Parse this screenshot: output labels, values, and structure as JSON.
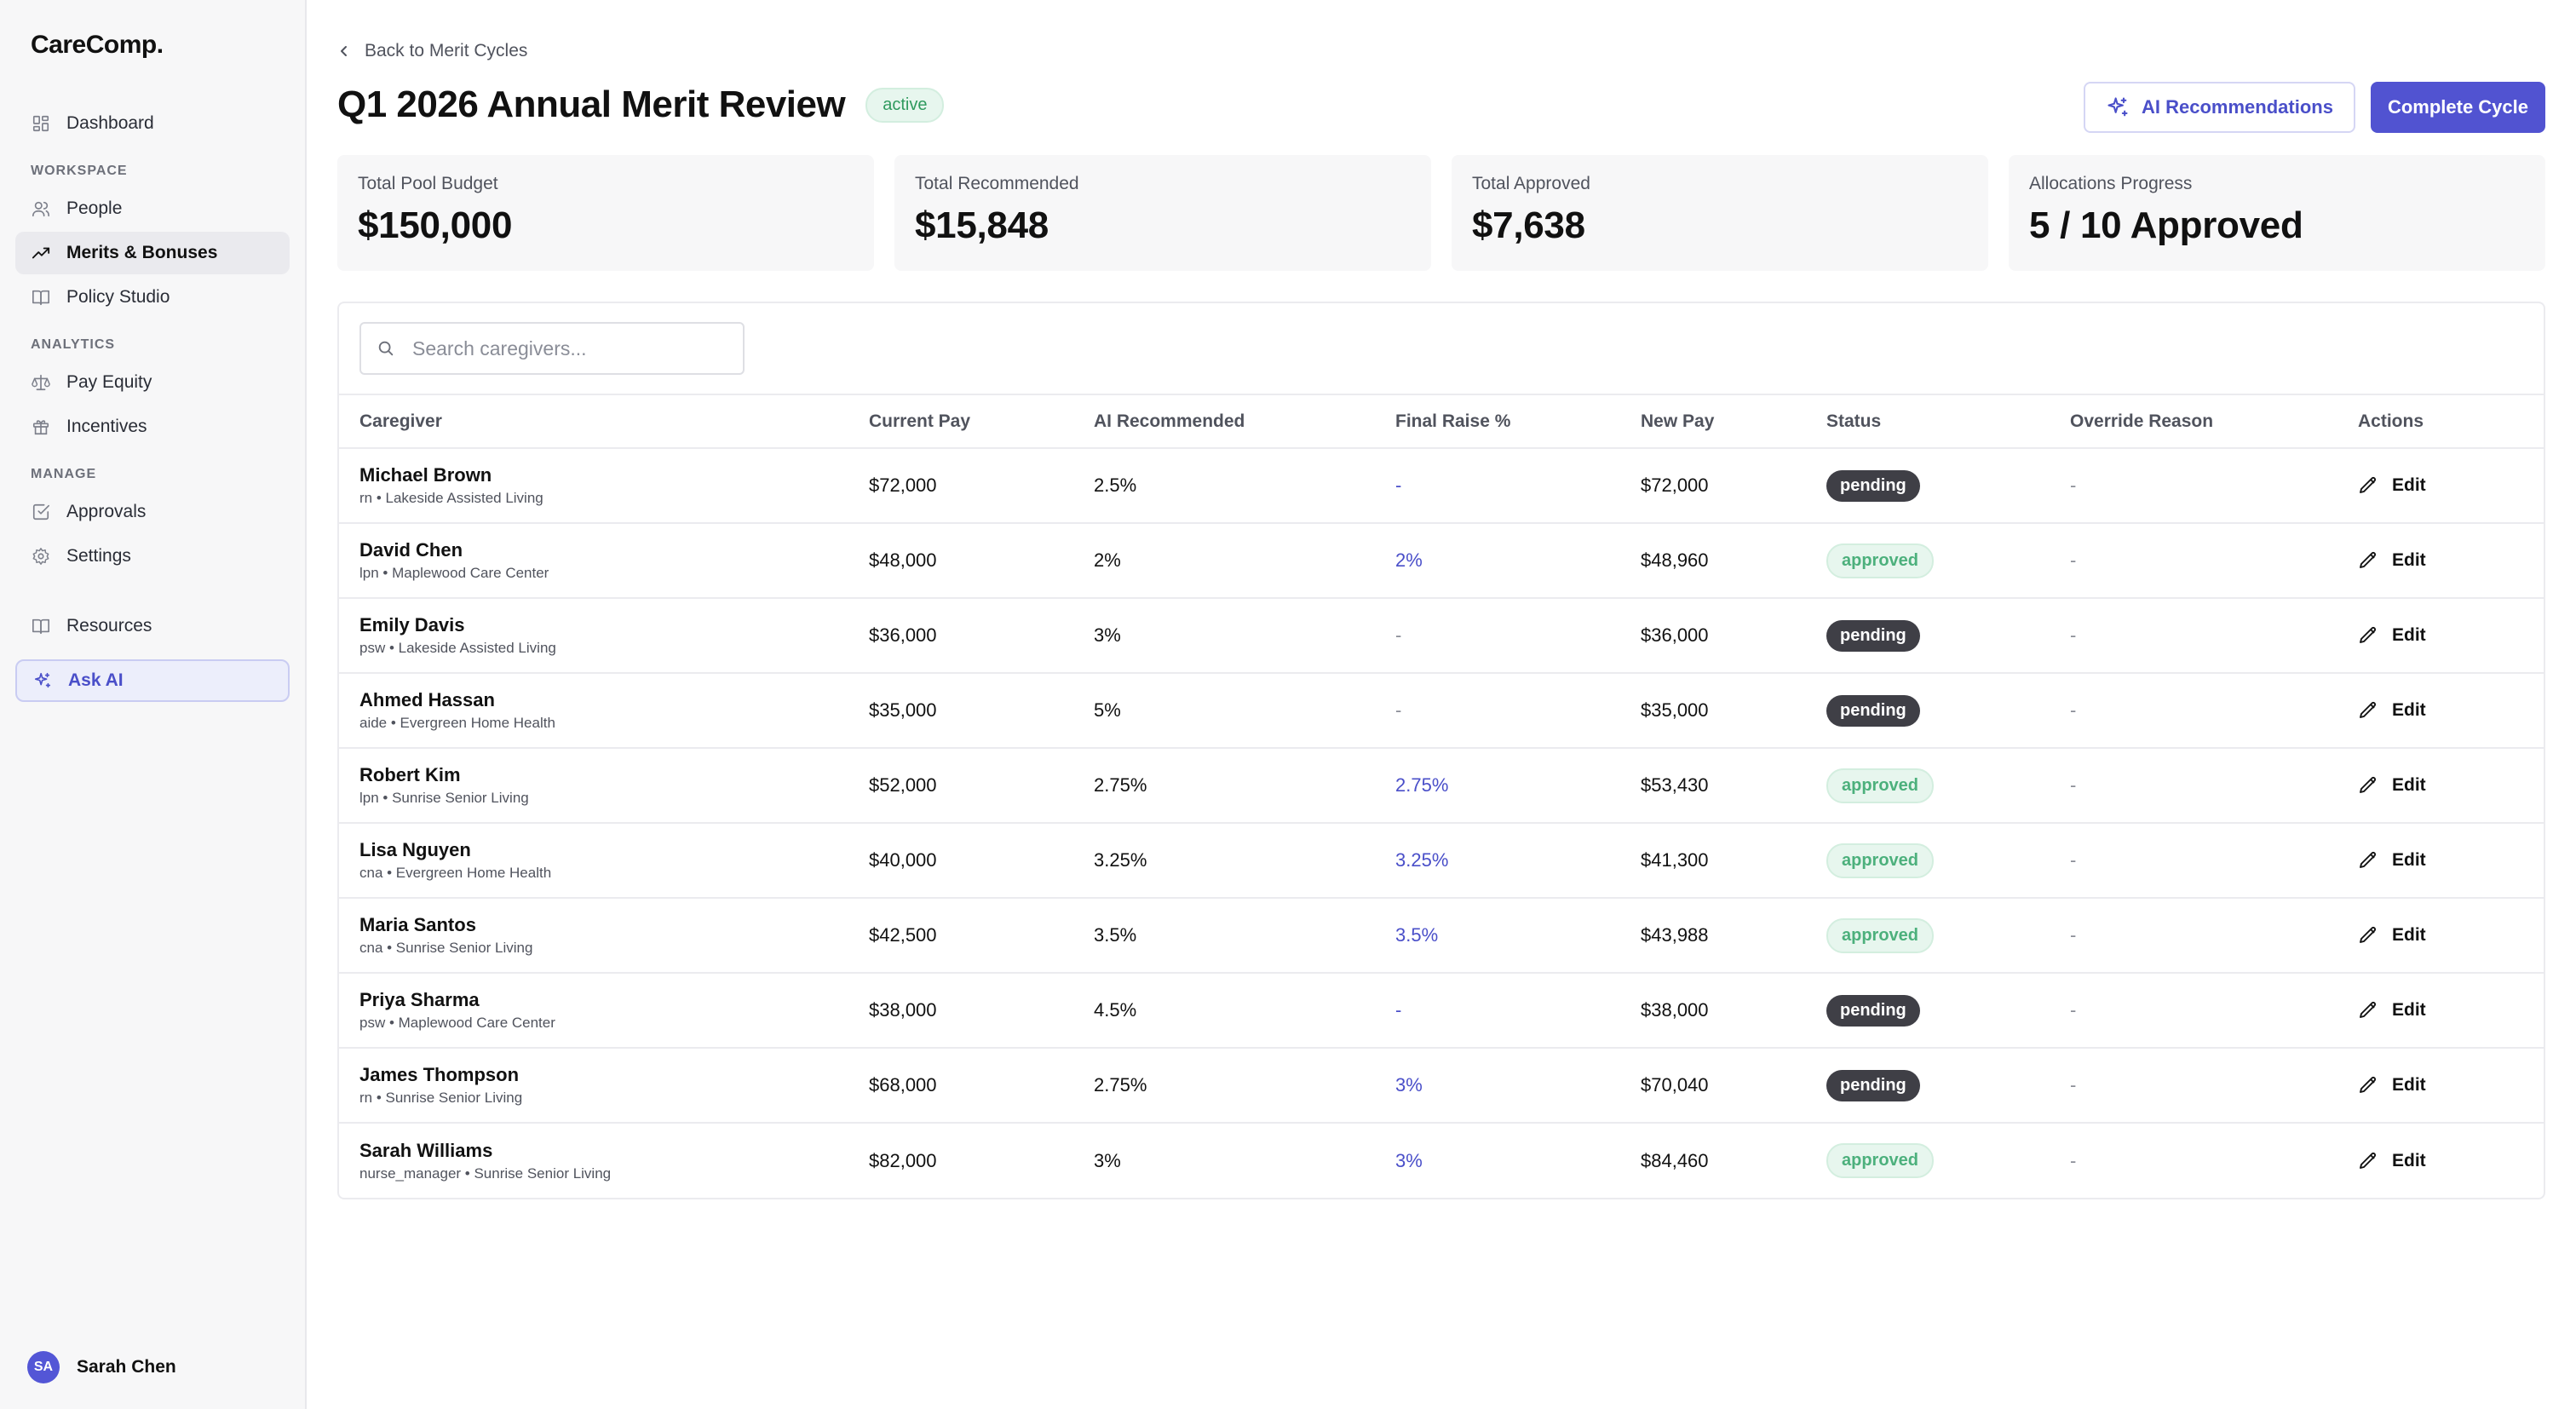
{
  "app": {
    "logo": "CareComp."
  },
  "sidebar": {
    "top_items": [
      {
        "label": "Dashboard",
        "icon": "dashboard-icon"
      }
    ],
    "sections": [
      {
        "title": "WORKSPACE",
        "items": [
          {
            "label": "People",
            "icon": "people-icon"
          },
          {
            "label": "Merits & Bonuses",
            "icon": "trending-up-icon",
            "active": true
          },
          {
            "label": "Policy Studio",
            "icon": "book-icon"
          }
        ]
      },
      {
        "title": "ANALYTICS",
        "items": [
          {
            "label": "Pay Equity",
            "icon": "scale-icon"
          },
          {
            "label": "Incentives",
            "icon": "gift-icon"
          }
        ]
      },
      {
        "title": "MANAGE",
        "items": [
          {
            "label": "Approvals",
            "icon": "check-square-icon"
          },
          {
            "label": "Settings",
            "icon": "gear-icon"
          }
        ]
      }
    ],
    "bottom_items": [
      {
        "label": "Resources",
        "icon": "book-open-icon"
      },
      {
        "label": "Ask AI",
        "icon": "sparkles-icon"
      }
    ],
    "user": {
      "initials": "SA",
      "name": "Sarah Chen"
    }
  },
  "header": {
    "back_label": "Back to Merit Cycles",
    "title": "Q1 2026 Annual Merit Review",
    "status": "active",
    "ai_button": "AI Recommendations",
    "complete_button": "Complete Cycle"
  },
  "stats": [
    {
      "label": "Total Pool Budget",
      "value": "$150,000"
    },
    {
      "label": "Total Recommended",
      "value": "$15,848"
    },
    {
      "label": "Total Approved",
      "value": "$7,638"
    },
    {
      "label": "Allocations Progress",
      "value": "5 / 10 Approved"
    }
  ],
  "search": {
    "placeholder": "Search caregivers..."
  },
  "table": {
    "columns": [
      "Caregiver",
      "Current Pay",
      "AI Recommended",
      "Final Raise %",
      "New Pay",
      "Status",
      "Override Reason",
      "Actions"
    ],
    "edit_label": "Edit",
    "rows": [
      {
        "name": "Michael Brown",
        "sub": "rn • Lakeside Assisted Living",
        "current": "$72,000",
        "ai": "2.5%",
        "final": "-",
        "new_pay": "$72,000",
        "status": "pending",
        "override": "-"
      },
      {
        "name": "David Chen",
        "sub": "lpn • Maplewood Care Center",
        "current": "$48,000",
        "ai": "2%",
        "final": "2%",
        "new_pay": "$48,960",
        "status": "approved",
        "override": "-"
      },
      {
        "name": "Emily Davis",
        "sub": "psw • Lakeside Assisted Living",
        "current": "$36,000",
        "ai": "3%",
        "final": "-",
        "new_pay": "$36,000",
        "status": "pending",
        "override": "-"
      },
      {
        "name": "Ahmed Hassan",
        "sub": "aide • Evergreen Home Health",
        "current": "$35,000",
        "ai": "5%",
        "final": "-",
        "new_pay": "$35,000",
        "status": "pending",
        "override": "-"
      },
      {
        "name": "Robert Kim",
        "sub": "lpn • Sunrise Senior Living",
        "current": "$52,000",
        "ai": "2.75%",
        "final": "2.75%",
        "new_pay": "$53,430",
        "status": "approved",
        "override": "-"
      },
      {
        "name": "Lisa Nguyen",
        "sub": "cna • Evergreen Home Health",
        "current": "$40,000",
        "ai": "3.25%",
        "final": "3.25%",
        "new_pay": "$41,300",
        "status": "approved",
        "override": "-"
      },
      {
        "name": "Maria Santos",
        "sub": "cna • Sunrise Senior Living",
        "current": "$42,500",
        "ai": "3.5%",
        "final": "3.5%",
        "new_pay": "$43,988",
        "status": "approved",
        "override": "-"
      },
      {
        "name": "Priya Sharma",
        "sub": "psw • Maplewood Care Center",
        "current": "$38,000",
        "ai": "4.5%",
        "final": "-",
        "new_pay": "$38,000",
        "status": "pending",
        "override": "-"
      },
      {
        "name": "James Thompson",
        "sub": "rn • Sunrise Senior Living",
        "current": "$68,000",
        "ai": "2.75%",
        "final": "3%",
        "new_pay": "$70,040",
        "status": "pending",
        "override": "-"
      },
      {
        "name": "Sarah Williams",
        "sub": "nurse_manager • Sunrise Senior Living",
        "current": "$82,000",
        "ai": "3%",
        "final": "3%",
        "new_pay": "$84,460",
        "status": "approved",
        "override": "-"
      }
    ]
  },
  "colors": {
    "accent": "#5153d1",
    "approved": "#4cb07c",
    "pending": "#3f3f46"
  }
}
